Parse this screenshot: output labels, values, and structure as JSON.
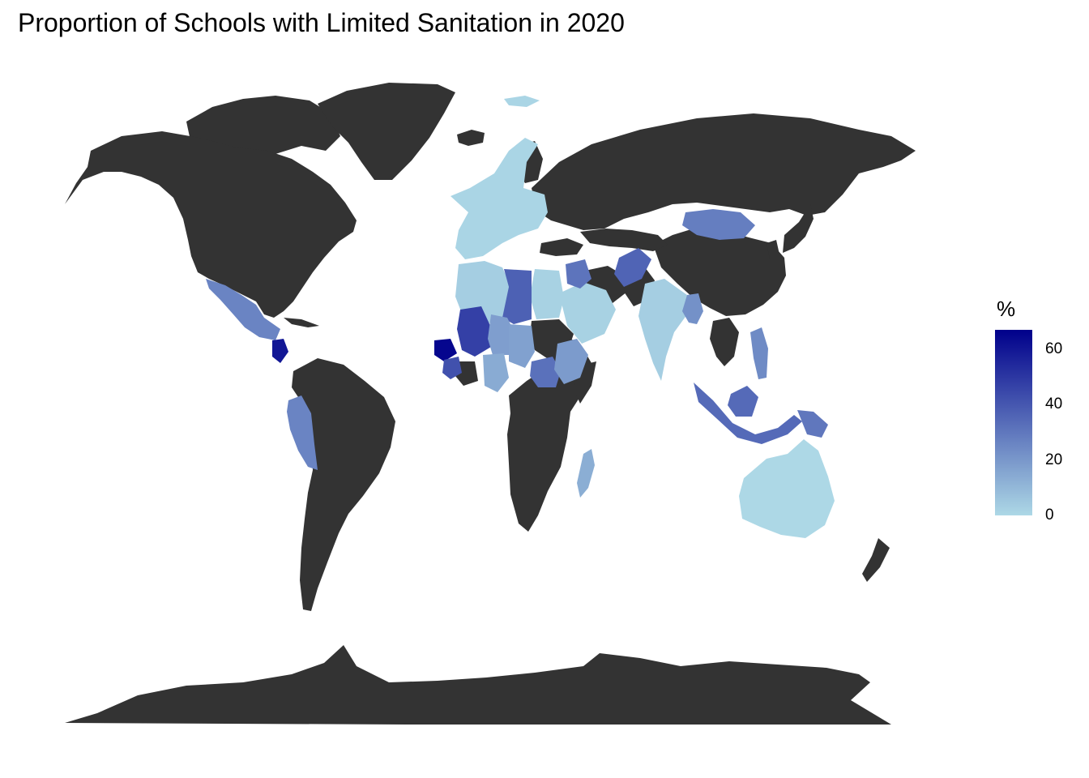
{
  "title": "Proportion of Schools with Limited Sanitation in 2020",
  "legend": {
    "title": "%",
    "ticks": [
      60,
      40,
      20,
      0
    ],
    "range": [
      0,
      67
    ],
    "color_low": "#add8e6",
    "color_high": "#00008b"
  },
  "colors": {
    "no_data": "#333333",
    "background": "#ffffff"
  },
  "chart_data": {
    "type": "choropleth",
    "variable": "%",
    "scale": "continuous",
    "regions": [
      {
        "name": "Senegal",
        "value": 65
      },
      {
        "name": "Guatemala",
        "value": 60
      },
      {
        "name": "Mali",
        "value": 47
      },
      {
        "name": "Guinea",
        "value": 42
      },
      {
        "name": "Libya",
        "value": 37
      },
      {
        "name": "Afghanistan",
        "value": 36
      },
      {
        "name": "Indonesia",
        "value": 34
      },
      {
        "name": "Central African Republic",
        "value": 32
      },
      {
        "name": "Iraq",
        "value": 31
      },
      {
        "name": "Mongolia",
        "value": 28
      },
      {
        "name": "Mexico",
        "value": 26
      },
      {
        "name": "Peru",
        "value": 26
      },
      {
        "name": "Papua New Guinea",
        "value": 30
      },
      {
        "name": "Philippines",
        "value": 24
      },
      {
        "name": "Myanmar",
        "value": 22
      },
      {
        "name": "Ethiopia",
        "value": 19
      },
      {
        "name": "Niger",
        "value": 18
      },
      {
        "name": "Chad",
        "value": 17
      },
      {
        "name": "Nigeria",
        "value": 14
      },
      {
        "name": "Madagascar",
        "value": 13
      },
      {
        "name": "India",
        "value": 3
      },
      {
        "name": "Saudi Arabia",
        "value": 2
      },
      {
        "name": "Egypt",
        "value": 2
      },
      {
        "name": "Algeria",
        "value": 3
      },
      {
        "name": "Europe",
        "value": 1
      },
      {
        "name": "Australia",
        "value": 0
      }
    ]
  }
}
